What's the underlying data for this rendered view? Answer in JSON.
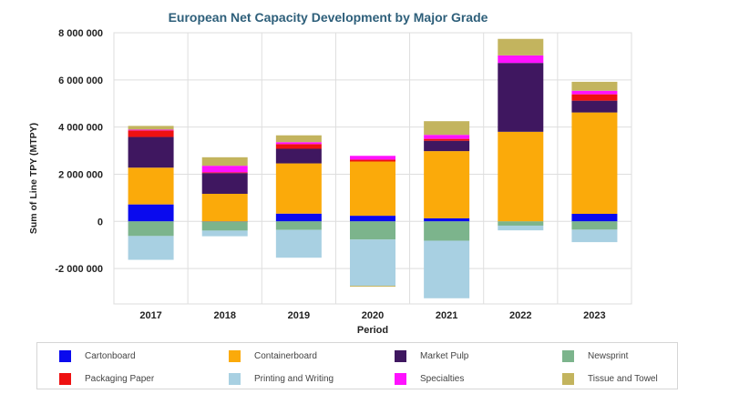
{
  "chart_data": {
    "type": "bar",
    "stacked": true,
    "title": "European Net Capacity Development by Major Grade",
    "xlabel": "Period",
    "ylabel": "Sum of Line TPY (MTPY)",
    "ylim": [
      -3500000,
      8000000
    ],
    "yticks": [
      {
        "value": 8000000,
        "label": "8 000 000"
      },
      {
        "value": 6000000,
        "label": "6 000 000"
      },
      {
        "value": 4000000,
        "label": "4 000 000"
      },
      {
        "value": 2000000,
        "label": "2 000 000"
      },
      {
        "value": 0,
        "label": "0"
      },
      {
        "value": -2000000,
        "label": "-2 000 000"
      }
    ],
    "grid": true,
    "legend_position": "bottom",
    "categories": [
      "2017",
      "2018",
      "2019",
      "2020",
      "2021",
      "2022",
      "2023"
    ],
    "series": [
      {
        "name": "Cartonboard",
        "color": "#0a0aee",
        "values": [
          720000,
          -10000,
          330000,
          240000,
          130000,
          0,
          320000
        ]
      },
      {
        "name": "Containerboard",
        "color": "#fbaa0a",
        "values": [
          1560000,
          1170000,
          2130000,
          2300000,
          2850000,
          3800000,
          4300000
        ]
      },
      {
        "name": "Market Pulp",
        "color": "#3f1760",
        "values": [
          1300000,
          880000,
          620000,
          0,
          440000,
          2920000,
          500000
        ]
      },
      {
        "name": "Newsprint",
        "color": "#7cb48c",
        "values": [
          -620000,
          -380000,
          -360000,
          -770000,
          -820000,
          -180000,
          -350000
        ]
      },
      {
        "name": "Packaging Paper",
        "color": "#ee1111",
        "values": [
          280000,
          30000,
          200000,
          80000,
          80000,
          0,
          270000
        ]
      },
      {
        "name": "Printing and Writing",
        "color": "#a8d0e2",
        "values": [
          -1010000,
          -240000,
          -1180000,
          -1960000,
          -2440000,
          -200000,
          -530000
        ]
      },
      {
        "name": "Specialties",
        "color": "#ff12ff",
        "values": [
          30000,
          280000,
          80000,
          160000,
          170000,
          320000,
          150000
        ]
      },
      {
        "name": "Tissue and Towel",
        "color": "#c3b45e",
        "values": [
          160000,
          360000,
          290000,
          0,
          580000,
          700000,
          380000
        ]
      }
    ],
    "extra_negative": [
      {
        "name": "Tissue and Towel",
        "values": [
          0,
          0,
          0,
          -40000,
          0,
          0,
          0
        ]
      }
    ]
  }
}
